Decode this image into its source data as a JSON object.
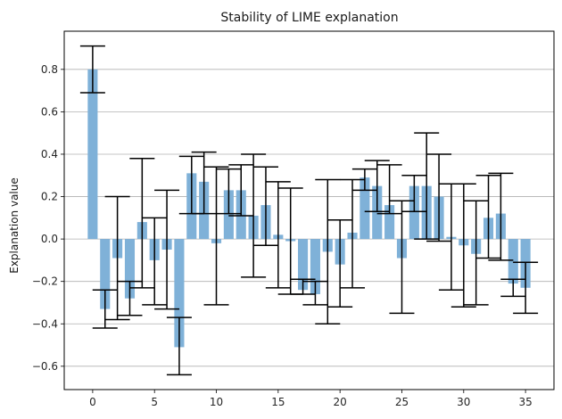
{
  "chart_data": {
    "type": "bar",
    "title": "Stability of LIME explanation",
    "xlabel": "",
    "ylabel": "Explanation value",
    "xlim": [
      -2.3,
      37.3
    ],
    "ylim": [
      -0.71,
      0.98
    ],
    "xticks": [
      0,
      5,
      10,
      15,
      20,
      25,
      30,
      35
    ],
    "yticks": [
      -0.6,
      -0.4,
      -0.2,
      0.0,
      0.2,
      0.4,
      0.6,
      0.8
    ],
    "ytick_labels": [
      "−0.6",
      "−0.4",
      "−0.2",
      "0.0",
      "0.2",
      "0.4",
      "0.6",
      "0.8"
    ],
    "grid": "y",
    "bar_color": "#7fb1d8",
    "error_color": "#000000",
    "x": [
      0,
      1,
      2,
      3,
      4,
      5,
      6,
      7,
      8,
      9,
      10,
      11,
      12,
      13,
      14,
      15,
      16,
      17,
      18,
      19,
      20,
      21,
      22,
      23,
      24,
      25,
      26,
      27,
      28,
      29,
      30,
      31,
      32,
      33,
      34,
      35
    ],
    "values": [
      0.8,
      -0.33,
      -0.09,
      -0.28,
      0.08,
      -0.1,
      -0.05,
      -0.51,
      0.31,
      0.27,
      -0.02,
      0.23,
      0.23,
      0.11,
      0.16,
      0.02,
      -0.01,
      -0.24,
      -0.26,
      -0.06,
      -0.12,
      0.03,
      0.29,
      0.25,
      0.16,
      -0.09,
      0.25,
      0.25,
      0.2,
      0.01,
      -0.03,
      -0.07,
      0.1,
      0.12,
      -0.21,
      -0.23
    ],
    "err_low": [
      0.69,
      -0.42,
      -0.38,
      -0.36,
      -0.23,
      -0.31,
      -0.33,
      -0.64,
      0.12,
      0.12,
      -0.31,
      0.12,
      0.11,
      -0.18,
      -0.03,
      -0.23,
      -0.26,
      -0.26,
      -0.31,
      -0.4,
      -0.32,
      -0.23,
      0.23,
      0.13,
      0.12,
      -0.35,
      0.13,
      0.0,
      -0.01,
      -0.24,
      -0.32,
      -0.31,
      -0.09,
      -0.1,
      -0.27,
      -0.35
    ],
    "err_high": [
      0.91,
      -0.24,
      0.2,
      -0.2,
      0.38,
      0.1,
      0.23,
      -0.37,
      0.39,
      0.41,
      0.34,
      0.33,
      0.35,
      0.4,
      0.34,
      0.27,
      0.24,
      -0.19,
      -0.2,
      0.28,
      0.09,
      0.28,
      0.33,
      0.37,
      0.35,
      0.18,
      0.3,
      0.5,
      0.4,
      0.26,
      0.26,
      0.18,
      0.3,
      0.31,
      -0.19,
      -0.11
    ]
  }
}
